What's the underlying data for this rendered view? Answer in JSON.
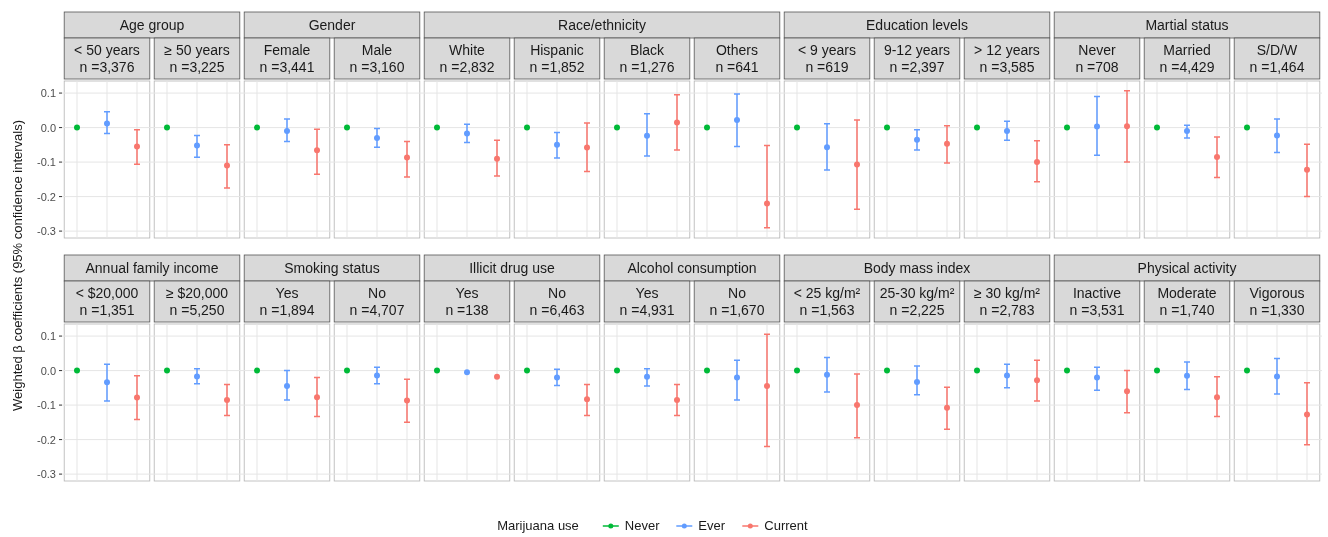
{
  "chart_data": [
    {
      "type": "scatter",
      "ylabel": "Weighted β coefficients (95% confidence intervals)",
      "legend": "bottom",
      "legend_title": "Marijuana use",
      "marker": "circle",
      "grid": true,
      "ylim": [
        -0.32,
        0.135
      ],
      "yticks": [
        0.1,
        {
          "value": 0,
          "label": "0.0"
        },
        -0.1,
        -0.2,
        -0.3
      ],
      "categories": [
        null,
        "< 50 years\nn =3,376",
        null,
        null,
        "≥ 50 years\nn =3,225",
        null,
        null,
        "Female\nn =3,441",
        null,
        null,
        "Male\nn =3,160",
        null,
        null,
        "White\nn =2,832",
        null,
        null,
        "Hispanic\nn =1,852",
        null,
        null,
        "Black\nn =1,276",
        null,
        null,
        "Others\nn =641",
        null,
        null,
        "< 9 years\nn =619",
        null,
        null,
        "9-12 years\nn =2,397",
        null,
        null,
        "> 12 years\nn =3,585",
        null,
        null,
        "Never\nn =708",
        null,
        null,
        "Married\nn =4,429",
        null,
        null,
        "S/D/W\nn =1,464",
        null
      ],
      "annotations": [
        "Age group",
        "Gender",
        "Race/ethnicity",
        "Education levels",
        "Martial status"
      ],
      "series": [
        {
          "name": "Never",
          "color": "#00ba38",
          "values": [
            0,
            null,
            null,
            0,
            null,
            null,
            0,
            null,
            null,
            0,
            null,
            null,
            0,
            null,
            null,
            0,
            null,
            null,
            0,
            null,
            null,
            0,
            null,
            null,
            0,
            null,
            null,
            0,
            null,
            null,
            0,
            null,
            null,
            0,
            null,
            null,
            0,
            null,
            null,
            0,
            null,
            null
          ]
        },
        {
          "name": "Ever",
          "color": "#619cff",
          "values": [
            null,
            0.012,
            null,
            null,
            -0.052,
            null,
            null,
            -0.01,
            null,
            null,
            -0.03,
            null,
            null,
            -0.017,
            null,
            null,
            -0.05,
            null,
            null,
            -0.024,
            null,
            null,
            0.022,
            null,
            null,
            -0.057,
            null,
            null,
            -0.035,
            null,
            null,
            -0.01,
            null,
            null,
            0.003,
            null,
            null,
            -0.01,
            null,
            null,
            -0.023,
            null
          ],
          "errors": [
            null,
            [
              -0.017,
              0.046
            ],
            null,
            null,
            [
              -0.086,
              -0.023
            ],
            null,
            null,
            [
              -0.04,
              0.025
            ],
            null,
            null,
            [
              -0.057,
              -0.003
            ],
            null,
            null,
            [
              -0.043,
              0.01
            ],
            null,
            null,
            [
              -0.088,
              -0.014
            ],
            null,
            null,
            [
              -0.082,
              0.04
            ],
            null,
            null,
            [
              -0.055,
              0.097
            ],
            null,
            null,
            [
              -0.123,
              0.011
            ],
            null,
            null,
            [
              -0.065,
              -0.006
            ],
            null,
            null,
            [
              -0.037,
              0.018
            ],
            null,
            null,
            [
              -0.08,
              0.09
            ],
            null,
            null,
            [
              -0.03,
              0.007
            ],
            null,
            null,
            [
              -0.072,
              0.025
            ],
            null
          ]
        },
        {
          "name": "Current",
          "color": "#f8766d",
          "values": [
            null,
            null,
            -0.055,
            null,
            null,
            -0.11,
            null,
            null,
            -0.066,
            null,
            null,
            -0.087,
            null,
            null,
            -0.09,
            null,
            null,
            -0.058,
            null,
            null,
            0.015,
            null,
            null,
            -0.22,
            null,
            null,
            -0.107,
            null,
            null,
            -0.047,
            null,
            null,
            -0.1,
            null,
            null,
            0.004,
            null,
            null,
            -0.085,
            null,
            null,
            -0.122
          ],
          "errors": [
            null,
            null,
            [
              -0.106,
              -0.006
            ],
            null,
            null,
            [
              -0.175,
              -0.05
            ],
            null,
            null,
            [
              -0.135,
              -0.005
            ],
            null,
            null,
            [
              -0.143,
              -0.04
            ],
            null,
            null,
            [
              -0.14,
              -0.037
            ],
            null,
            null,
            [
              -0.127,
              0.013
            ],
            null,
            null,
            [
              -0.065,
              0.095
            ],
            null,
            null,
            [
              -0.29,
              -0.052
            ],
            null,
            null,
            [
              -0.237,
              0.022
            ],
            null,
            null,
            [
              -0.103,
              0.005
            ],
            null,
            null,
            [
              -0.157,
              -0.038
            ],
            null,
            null,
            [
              -0.1,
              0.107
            ],
            null,
            null,
            [
              -0.145,
              -0.027
            ],
            null,
            null,
            [
              -0.2,
              -0.048
            ]
          ]
        }
      ]
    },
    {
      "type": "scatter",
      "marker": "circle",
      "grid": true,
      "ylim": [
        -0.32,
        0.135
      ],
      "yticks": [
        0.1,
        {
          "value": 0,
          "label": "0.0"
        },
        -0.1,
        -0.2,
        -0.3
      ],
      "categories": [
        null,
        "< $20,000\nn =1,351",
        null,
        null,
        "≥ $20,000\nn =5,250",
        null,
        null,
        "Yes\nn =1,894",
        null,
        null,
        "No\nn =4,707",
        null,
        null,
        "Yes\nn =138",
        null,
        null,
        "No\nn =6,463",
        null,
        null,
        "Yes\nn =4,931",
        null,
        null,
        "No\nn =1,670",
        null,
        null,
        "< 25 kg/m²\nn =1,563",
        null,
        null,
        "25-30 kg/m²\nn =2,225",
        null,
        null,
        "≥ 30 kg/m²\nn =2,783",
        null,
        null,
        "Inactive\nn =3,531",
        null,
        null,
        "Moderate\nn =1,740",
        null,
        null,
        "Vigorous\nn =1,330",
        null
      ],
      "annotations": [
        "Annual family income",
        "Smoking status",
        "Illicit drug use",
        "Alcohol consumption",
        "Body mass index",
        "Physical activity"
      ],
      "series": [
        {
          "color": "#00ba38",
          "values": [
            0,
            null,
            null,
            0,
            null,
            null,
            0,
            null,
            null,
            0,
            null,
            null,
            0,
            null,
            null,
            0,
            null,
            null,
            0,
            null,
            null,
            0,
            null,
            null,
            0,
            null,
            null,
            0,
            null,
            null,
            0,
            null,
            null,
            0,
            null,
            null,
            0,
            null,
            null,
            0,
            null,
            null
          ]
        },
        {
          "color": "#619cff",
          "values": [
            null,
            -0.034,
            null,
            null,
            -0.017,
            null,
            null,
            -0.045,
            null,
            null,
            -0.014,
            null,
            null,
            -0.005,
            null,
            null,
            -0.02,
            null,
            null,
            -0.018,
            null,
            null,
            -0.02,
            null,
            null,
            -0.012,
            null,
            null,
            -0.033,
            null,
            null,
            -0.014,
            null,
            null,
            -0.02,
            null,
            null,
            -0.015,
            null,
            null,
            -0.017,
            null
          ],
          "errors": [
            null,
            [
              -0.088,
              0.018
            ],
            null,
            null,
            [
              -0.038,
              0.005
            ],
            null,
            null,
            [
              -0.085,
              0
            ],
            null,
            null,
            [
              -0.038,
              0.01
            ],
            null,
            null,
            null,
            null,
            null,
            [
              -0.043,
              0.004
            ],
            null,
            null,
            [
              -0.045,
              0.005
            ],
            null,
            null,
            [
              -0.085,
              0.03
            ],
            null,
            null,
            [
              -0.062,
              0.038
            ],
            null,
            null,
            [
              -0.07,
              0.013
            ],
            null,
            null,
            [
              -0.05,
              0.018
            ],
            null,
            null,
            [
              -0.057,
              0.01
            ],
            null,
            null,
            [
              -0.055,
              0.025
            ],
            null,
            null,
            [
              -0.068,
              0.035
            ],
            null
          ]
        },
        {
          "color": "#f8766d",
          "values": [
            null,
            null,
            -0.078,
            null,
            null,
            -0.085,
            null,
            null,
            -0.077,
            null,
            null,
            -0.087,
            null,
            null,
            -0.018,
            null,
            null,
            -0.083,
            null,
            null,
            -0.085,
            null,
            null,
            -0.045,
            null,
            null,
            -0.1,
            null,
            null,
            -0.108,
            null,
            null,
            -0.028,
            null,
            null,
            -0.06,
            null,
            null,
            -0.077,
            null,
            null,
            -0.127
          ],
          "errors": [
            null,
            null,
            [
              -0.142,
              -0.015
            ],
            null,
            null,
            [
              -0.13,
              -0.04
            ],
            null,
            null,
            [
              -0.133,
              -0.02
            ],
            null,
            null,
            [
              -0.15,
              -0.025
            ],
            null,
            null,
            null,
            null,
            null,
            [
              -0.13,
              -0.04
            ],
            null,
            null,
            [
              -0.13,
              -0.04
            ],
            null,
            null,
            [
              -0.22,
              0.105
            ],
            null,
            null,
            [
              -0.195,
              -0.01
            ],
            null,
            null,
            [
              -0.17,
              -0.048
            ],
            null,
            null,
            [
              -0.088,
              0.03
            ],
            null,
            null,
            [
              -0.122,
              0
            ],
            null,
            null,
            [
              -0.133,
              -0.018
            ],
            null,
            null,
            [
              -0.215,
              -0.035
            ]
          ]
        }
      ]
    }
  ]
}
